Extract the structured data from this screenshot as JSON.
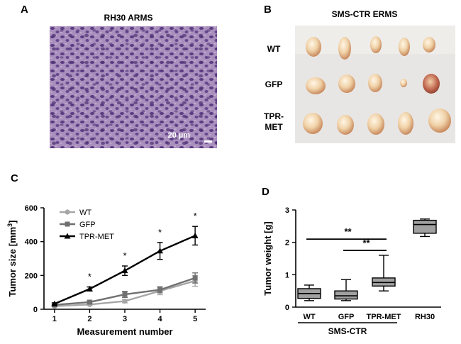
{
  "panels": {
    "a": {
      "letter": "A",
      "title": "RH30 ARMS",
      "scale_bar": "20 µm"
    },
    "b": {
      "letter": "B",
      "title": "SMS-CTR ERMS",
      "rows": [
        "WT",
        "GFP",
        "TPR-",
        "MET"
      ]
    },
    "c": {
      "letter": "C"
    },
    "d": {
      "letter": "D"
    }
  },
  "chart_data": [
    {
      "type": "line",
      "panel": "C",
      "xlabel": "Measurement number",
      "ylabel": "Tumor size [mm3]",
      "ylabel_parts": {
        "text": "Tumor size [mm",
        "sup": "3",
        "close": "]"
      },
      "xlim": [
        0.7,
        5.3
      ],
      "ylim": [
        0,
        600
      ],
      "x": [
        1,
        2,
        3,
        4,
        5
      ],
      "x_ticks": [
        "1",
        "2",
        "3",
        "4",
        "5"
      ],
      "y_ticks": [
        "0",
        "200",
        "400",
        "600"
      ],
      "legend_position": "top-left",
      "series": [
        {
          "name": "WT",
          "marker": "circle",
          "color": "#a6a6a6",
          "values": [
            18,
            28,
            48,
            108,
            168
          ],
          "errors": [
            4,
            6,
            10,
            22,
            32
          ]
        },
        {
          "name": "GFP",
          "marker": "square",
          "color": "#707070",
          "values": [
            26,
            42,
            88,
            115,
            185
          ],
          "errors": [
            5,
            8,
            18,
            18,
            30
          ]
        },
        {
          "name": "TPR-MET",
          "marker": "triangle",
          "color": "#000000",
          "values": [
            32,
            120,
            228,
            345,
            435
          ],
          "errors": [
            6,
            12,
            28,
            50,
            55
          ]
        }
      ],
      "significance": [
        {
          "x": 2,
          "label": "*"
        },
        {
          "x": 3,
          "label": "*"
        },
        {
          "x": 4,
          "label": "*"
        },
        {
          "x": 5,
          "label": "*"
        }
      ]
    },
    {
      "type": "box",
      "panel": "D",
      "ylabel": "Tumor weight [g]",
      "ylim": [
        0,
        3
      ],
      "y_ticks": [
        "0",
        "1",
        "2",
        "3"
      ],
      "categories": [
        "WT",
        "GFP",
        "TPR-MET",
        "RH30"
      ],
      "group_label": "SMS-CTR",
      "box_color": "#a0a0a0",
      "boxes": [
        {
          "min": 0.2,
          "q1": 0.27,
          "median": 0.42,
          "q3": 0.57,
          "max": 0.68
        },
        {
          "min": 0.2,
          "q1": 0.25,
          "median": 0.35,
          "q3": 0.5,
          "max": 0.85
        },
        {
          "min": 0.5,
          "q1": 0.65,
          "median": 0.76,
          "q3": 0.9,
          "max": 1.6
        },
        {
          "min": 2.18,
          "q1": 2.28,
          "median": 2.55,
          "q3": 2.68,
          "max": 2.72
        }
      ],
      "significance": [
        {
          "from": "WT",
          "to": "TPR-MET",
          "label": "**",
          "y": 2.1
        },
        {
          "from": "GFP",
          "to": "TPR-MET",
          "label": "**",
          "y": 1.75
        }
      ]
    }
  ]
}
